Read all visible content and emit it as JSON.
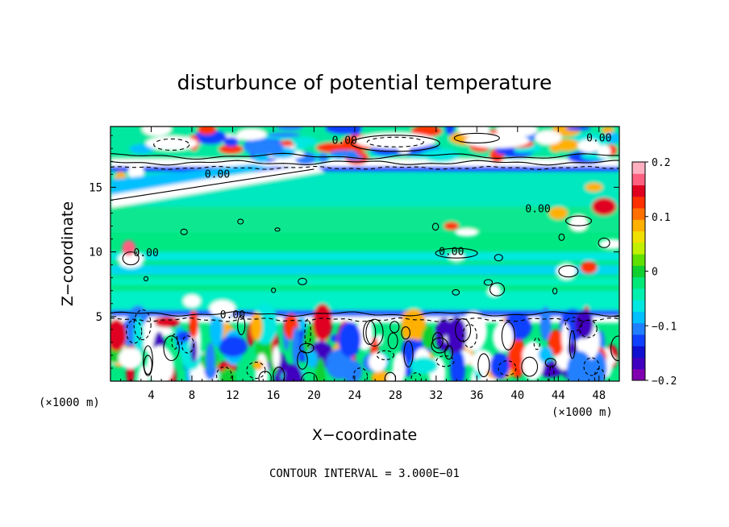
{
  "chart_data": {
    "type": "heatmap",
    "title": "disturbunce of potential temperature",
    "xlabel": "X−coordinate",
    "ylabel": "Z−coordinate",
    "x_unit": "(×1000 m)",
    "y_unit": "(×1000 m)",
    "xlim": [
      0,
      50
    ],
    "ylim": [
      0,
      19.7
    ],
    "x_ticks": [
      4,
      8,
      12,
      16,
      20,
      24,
      28,
      32,
      36,
      40,
      44,
      48
    ],
    "y_ticks": [
      5,
      10,
      15
    ],
    "colorbar": {
      "range": [
        -0.2,
        0.2
      ],
      "tick_values": [
        0.2,
        0.1,
        0,
        -0.1,
        -0.2
      ],
      "tick_labels": [
        "0.2",
        "0.1",
        "0",
        "−0.1",
        "−0.2"
      ],
      "colors": [
        "#8000b0",
        "#4000c0",
        "#1010d0",
        "#1040ff",
        "#2080ff",
        "#00c0ff",
        "#00e8e0",
        "#00f0b0",
        "#00e878",
        "#10d030",
        "#60e000",
        "#c0f000",
        "#f0e000",
        "#ffb000",
        "#ff7000",
        "#ff3000",
        "#e00020",
        "#ff6080",
        "#ffb0c0"
      ]
    },
    "contour_labels": [
      "0.00",
      "0.00",
      "0.00",
      "0.00",
      "0.00",
      "0.00",
      "0.00"
    ],
    "footer": "CONTOUR INTERVAL = 3.000E−01"
  }
}
